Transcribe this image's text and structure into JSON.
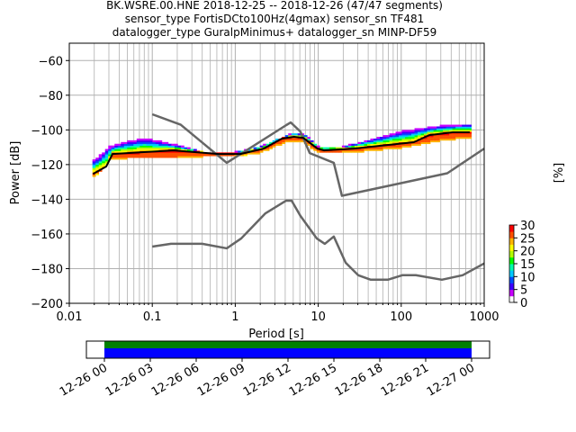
{
  "chart_data": {
    "type": "heatmap",
    "title_lines": [
      "BK.WSRE.00.HNE   2018-12-25 -- 2018-12-26  (47/47 segments)",
      "sensor_type FortisDCto100Hz(4gmax) sensor_sn TF481",
      "datalogger_type GuralpMinimus+ datalogger_sn MINP-DF59"
    ],
    "xlabel": "Period [s]",
    "ylabel": "Power [dB]",
    "xscale": "log",
    "xlim": [
      0.01,
      1000
    ],
    "ylim": [
      -200,
      -50
    ],
    "xtick_labels": [
      "0.01",
      "0.1",
      "1",
      "10",
      "100",
      "1000"
    ],
    "xtick_values": [
      0.01,
      0.1,
      1,
      10,
      100,
      1000
    ],
    "ytick_values": [
      -200,
      -180,
      -160,
      -140,
      -120,
      -100,
      -80,
      -60
    ],
    "ytick_labels": [
      "−200",
      "−180",
      "−160",
      "−140",
      "−120",
      "−100",
      "−80",
      "−60"
    ],
    "grid": true,
    "colorbar": {
      "label": "[%]",
      "range": [
        0,
        30
      ],
      "tick_values": [
        0,
        5,
        10,
        15,
        20,
        25,
        30
      ],
      "tick_labels": [
        "0",
        "5",
        "10",
        "15",
        "20",
        "25",
        "30"
      ],
      "colors": [
        "#ffffff",
        "#c800ff",
        "#3c00ff",
        "#0050ff",
        "#00c8ff",
        "#00ffaa",
        "#00ff00",
        "#b4ff00",
        "#ffff00",
        "#ffb400",
        "#ff5000",
        "#ff0000"
      ]
    },
    "ppsd_envelope": {
      "period": [
        0.019,
        0.025,
        0.03,
        0.05,
        0.08,
        0.2,
        0.4,
        1,
        2,
        4,
        5,
        7,
        10,
        20,
        100,
        300,
        700
      ],
      "upper_db": [
        -118,
        -114,
        -110,
        -107,
        -105,
        -109,
        -113,
        -113,
        -110,
        -104,
        -102,
        -103,
        -110,
        -110,
        -101,
        -98,
        -97
      ],
      "lower_db": [
        -127,
        -123,
        -117,
        -116,
        -116,
        -116,
        -115,
        -115,
        -113,
        -107,
        -106,
        -107,
        -113,
        -113,
        -110,
        -106,
        -104
      ]
    },
    "series": [
      {
        "name": "mean",
        "color": "#000000",
        "period": [
          0.0193,
          0.0279,
          0.0332,
          0.0794,
          0.181,
          0.63,
          1.15,
          2.2,
          3.63,
          5.1,
          6.6,
          9.8,
          11.7,
          26.7,
          142,
          218,
          417,
          670
        ],
        "db": [
          -125.4,
          -121.1,
          -113.9,
          -112.8,
          -111.8,
          -113.9,
          -113.9,
          -110.8,
          -105.1,
          -104,
          -104.6,
          -110.8,
          -111.8,
          -110.8,
          -107.1,
          -103,
          -101.4,
          -101.4
        ]
      },
      {
        "name": "NHNM",
        "color": "#666666",
        "period": [
          0.1,
          0.22,
          0.79,
          4.1,
          4.66,
          6.1,
          7.9,
          15.4,
          19.3,
          359,
          1000
        ],
        "db": [
          -91,
          -97,
          -119,
          -97.3,
          -95.7,
          -101,
          -113.4,
          -119,
          -138,
          -125,
          -110.8
        ]
      },
      {
        "name": "NLNM",
        "color": "#666666",
        "period": [
          0.1,
          0.168,
          0.4,
          0.79,
          1.18,
          2.31,
          4.1,
          4.78,
          6.1,
          9.6,
          12,
          15.4,
          21.4,
          30.3,
          43,
          69,
          103,
          150,
          309,
          550,
          1000
        ],
        "db": [
          -167.3,
          -165.7,
          -165.7,
          -168.3,
          -162.6,
          -148.1,
          -140.8,
          -140.8,
          -149.6,
          -162.6,
          -165.7,
          -161.5,
          -176.6,
          -183.8,
          -186.4,
          -186.4,
          -183.8,
          -183.8,
          -186.4,
          -183.8,
          -177
        ]
      }
    ],
    "coverage": {
      "tick_labels": [
        "12-26 00",
        "12-26 03",
        "12-26 06",
        "12-26 09",
        "12-26 12",
        "12-26 15",
        "12-26 18",
        "12-26 21",
        "12-27 00"
      ],
      "data_color": "#008000",
      "used_color": "#0000ff",
      "covered_fraction": [
        0,
        1
      ]
    }
  }
}
